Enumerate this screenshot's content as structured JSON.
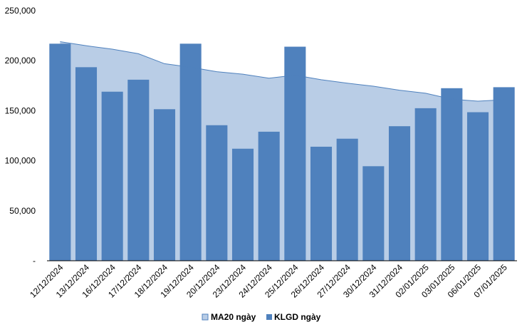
{
  "chart_data": {
    "type": "bar",
    "categories": [
      "12/12/2024",
      "13/12/2024",
      "16/12/2024",
      "17/12/2024",
      "18/12/2024",
      "19/12/2024",
      "20/12/2024",
      "23/12/2024",
      "24/12/2024",
      "25/12/2024",
      "26/12/2024",
      "27/12/2024",
      "30/12/2024",
      "31/12/2024",
      "02/01/2025",
      "03/01/2025",
      "06/01/2025",
      "07/01/2025"
    ],
    "series": [
      {
        "name": "MA20 ngày",
        "kind": "area",
        "color": "#b9cde6",
        "line_color": "#4f81bd",
        "values": [
          219000,
          215000,
          211500,
          207000,
          197000,
          193500,
          189000,
          186500,
          182500,
          185500,
          181000,
          177500,
          174500,
          170500,
          167500,
          161500,
          159500,
          161000
        ]
      },
      {
        "name": "KLGD ngày",
        "kind": "bar",
        "color": "#4f81bd",
        "values": [
          217000,
          193500,
          169000,
          181000,
          151500,
          217000,
          135500,
          112000,
          129000,
          214000,
          114000,
          122000,
          94500,
          134500,
          152500,
          172500,
          148500,
          173500
        ]
      }
    ],
    "y_ticks": [
      "-",
      "50,000",
      "100,000",
      "150,000",
      "200,000",
      "250,000"
    ],
    "ylim": [
      0,
      250000
    ],
    "grid": false,
    "legend": "bottom-center"
  }
}
